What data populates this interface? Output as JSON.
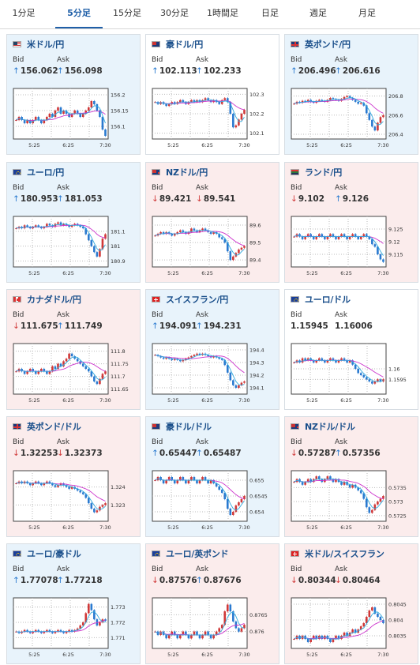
{
  "tabs": [
    {
      "label": "1分足",
      "active": false
    },
    {
      "label": "5分足",
      "active": true
    },
    {
      "label": "15分足",
      "active": false
    },
    {
      "label": "30分足",
      "active": false
    },
    {
      "label": "1時間足",
      "active": false
    },
    {
      "label": "日足",
      "active": false
    },
    {
      "label": "週足",
      "active": false
    },
    {
      "label": "月足",
      "active": false
    }
  ],
  "labels": {
    "bid": "Bid",
    "ask": "Ask"
  },
  "colors": {
    "up": "#2a7ad0",
    "down": "#d03838",
    "card_up": "#e8f3fb",
    "card_down": "#fbecec",
    "ma": "#cc33cc",
    "ma2": "#33aadd"
  },
  "cards": [
    {
      "pair": "米ドル/円",
      "flag": "us-flag",
      "trend": "up",
      "bid": "156.062",
      "ask": "156.098",
      "bid_dir": "up",
      "ask_dir": "up",
      "chart_data": {
        "type": "candlestick",
        "x_ticks": [
          "5:25",
          "6:25",
          "7:30"
        ],
        "y_ticks": [
          "156.2",
          "156.15",
          "156.1"
        ],
        "ylim": [
          156.06,
          156.22
        ],
        "close": [
          156.12,
          156.13,
          156.12,
          156.11,
          156.12,
          156.11,
          156.12,
          156.13,
          156.12,
          156.11,
          156.12,
          156.13,
          156.14,
          156.13,
          156.15,
          156.16,
          156.14,
          156.15,
          156.14,
          156.13,
          156.14,
          156.15,
          156.14,
          156.13,
          156.14,
          156.15,
          156.16,
          156.18,
          156.17,
          156.15,
          156.13,
          156.09,
          156.07
        ]
      }
    },
    {
      "pair": "豪ドル/円",
      "flag": "au-flag",
      "trend": "neutral",
      "bid": "102.113",
      "ask": "102.233",
      "bid_dir": "up",
      "ask_dir": "up",
      "chart_data": {
        "type": "candlestick",
        "x_ticks": [
          "5:25",
          "6:25",
          "7:30"
        ],
        "y_ticks": [
          "102.3",
          "102.2",
          "102.1"
        ],
        "ylim": [
          102.07,
          102.33
        ],
        "close": [
          102.26,
          102.25,
          102.26,
          102.25,
          102.24,
          102.25,
          102.26,
          102.25,
          102.26,
          102.27,
          102.26,
          102.25,
          102.26,
          102.27,
          102.26,
          102.27,
          102.26,
          102.27,
          102.28,
          102.27,
          102.26,
          102.27,
          102.26,
          102.25,
          102.27,
          102.28,
          102.26,
          102.2,
          102.13,
          102.14,
          102.17,
          102.2,
          102.22
        ]
      }
    },
    {
      "pair": "英ポンド/円",
      "flag": "uk-flag",
      "trend": "up",
      "bid": "206.496",
      "ask": "206.616",
      "bid_dir": "up",
      "ask_dir": "up",
      "chart_data": {
        "type": "candlestick",
        "x_ticks": [
          "5:25",
          "6:25",
          "7:30"
        ],
        "y_ticks": [
          "206.8",
          "206.6",
          "206.4"
        ],
        "ylim": [
          206.35,
          206.88
        ],
        "close": [
          206.72,
          206.74,
          206.73,
          206.75,
          206.74,
          206.76,
          206.74,
          206.73,
          206.75,
          206.76,
          206.75,
          206.74,
          206.76,
          206.78,
          206.77,
          206.76,
          206.75,
          206.77,
          206.79,
          206.8,
          206.78,
          206.76,
          206.74,
          206.72,
          206.73,
          206.7,
          206.62,
          206.55,
          206.48,
          206.44,
          206.52,
          206.58,
          206.6
        ]
      }
    },
    {
      "pair": "ユーロ/円",
      "flag": "eu-flag",
      "trend": "up",
      "bid": "180.953",
      "ask": "181.053",
      "bid_dir": "up",
      "ask_dir": "up",
      "chart_data": {
        "type": "candlestick",
        "x_ticks": [
          "5:25",
          "6:25",
          "7:30"
        ],
        "y_ticks": [
          "181.1",
          "181",
          "180.9"
        ],
        "ylim": [
          180.86,
          181.2
        ],
        "close": [
          181.12,
          181.13,
          181.12,
          181.14,
          181.13,
          181.12,
          181.13,
          181.14,
          181.13,
          181.12,
          181.13,
          181.15,
          181.14,
          181.13,
          181.15,
          181.16,
          181.14,
          181.15,
          181.14,
          181.13,
          181.14,
          181.15,
          181.14,
          181.13,
          181.12,
          181.08,
          181.04,
          181.0,
          180.96,
          180.93,
          180.98,
          181.05,
          181.08
        ]
      }
    },
    {
      "pair": "NZドル/円",
      "flag": "nz-flag",
      "trend": "down",
      "bid": "89.421",
      "ask": "89.541",
      "bid_dir": "down",
      "ask_dir": "down",
      "chart_data": {
        "type": "candlestick",
        "x_ticks": [
          "5:25",
          "6:25",
          "7:30"
        ],
        "y_ticks": [
          "89.6",
          "89.5",
          "89.4"
        ],
        "ylim": [
          89.36,
          89.65
        ],
        "close": [
          89.54,
          89.55,
          89.56,
          89.55,
          89.56,
          89.55,
          89.54,
          89.55,
          89.56,
          89.57,
          89.56,
          89.55,
          89.56,
          89.58,
          89.57,
          89.56,
          89.57,
          89.58,
          89.57,
          89.56,
          89.55,
          89.56,
          89.55,
          89.53,
          89.52,
          89.5,
          89.45,
          89.4,
          89.42,
          89.44,
          89.46,
          89.47,
          89.48
        ]
      }
    },
    {
      "pair": "ランド/円",
      "flag": "za-flag",
      "trend": "down",
      "bid": "9.102",
      "ask": "9.126",
      "bid_dir": "down",
      "ask_dir": "up",
      "chart_data": {
        "type": "candlestick",
        "x_ticks": [
          "5:25",
          "6:25",
          "7:30"
        ],
        "y_ticks": [
          "9.125",
          "9.12",
          "9.115"
        ],
        "ylim": [
          9.11,
          9.13
        ],
        "close": [
          9.122,
          9.123,
          9.122,
          9.121,
          9.122,
          9.123,
          9.122,
          9.121,
          9.122,
          9.123,
          9.122,
          9.121,
          9.122,
          9.123,
          9.122,
          9.121,
          9.122,
          9.123,
          9.122,
          9.121,
          9.122,
          9.123,
          9.122,
          9.121,
          9.122,
          9.123,
          9.122,
          9.121,
          9.119,
          9.118,
          9.115,
          9.113,
          9.112
        ]
      }
    },
    {
      "pair": "カナダドル/円",
      "flag": "ca-flag",
      "trend": "down",
      "bid": "111.675",
      "ask": "111.749",
      "bid_dir": "down",
      "ask_dir": "up",
      "chart_data": {
        "type": "candlestick",
        "x_ticks": [
          "5:25",
          "6:25",
          "7:30"
        ],
        "y_ticks": [
          "111.8",
          "111.75",
          "111.7",
          "111.65"
        ],
        "ylim": [
          111.63,
          111.83
        ],
        "close": [
          111.72,
          111.73,
          111.72,
          111.71,
          111.72,
          111.73,
          111.72,
          111.71,
          111.72,
          111.73,
          111.72,
          111.71,
          111.72,
          111.74,
          111.73,
          111.75,
          111.74,
          111.76,
          111.77,
          111.79,
          111.78,
          111.77,
          111.76,
          111.75,
          111.74,
          111.73,
          111.72,
          111.7,
          111.68,
          111.67,
          111.69,
          111.71,
          111.72
        ]
      }
    },
    {
      "pair": "スイスフラン/円",
      "flag": "ch-flag",
      "trend": "up",
      "bid": "194.091",
      "ask": "194.231",
      "bid_dir": "up",
      "ask_dir": "up",
      "chart_data": {
        "type": "candlestick",
        "x_ticks": [
          "5:25",
          "6:25",
          "7:30"
        ],
        "y_ticks": [
          "194.4",
          "194.3",
          "194.2",
          "194.1"
        ],
        "ylim": [
          194.05,
          194.45
        ],
        "close": [
          194.36,
          194.35,
          194.34,
          194.33,
          194.34,
          194.33,
          194.32,
          194.33,
          194.32,
          194.31,
          194.32,
          194.33,
          194.34,
          194.35,
          194.36,
          194.37,
          194.36,
          194.37,
          194.36,
          194.35,
          194.34,
          194.35,
          194.34,
          194.33,
          194.32,
          194.28,
          194.22,
          194.16,
          194.12,
          194.1,
          194.12,
          194.14,
          194.15
        ]
      }
    },
    {
      "pair": "ユーロ/ドル",
      "flag": "eu-flag",
      "trend": "neutral",
      "bid": "1.15945",
      "ask": "1.16006",
      "bid_dir": "none",
      "ask_dir": "none",
      "chart_data": {
        "type": "candlestick",
        "x_ticks": [
          "5:25",
          "6:25",
          "7:30"
        ],
        "y_ticks": [
          "1.16",
          "1.1595"
        ],
        "ylim": [
          1.1588,
          1.1612
        ],
        "close": [
          1.1603,
          1.1604,
          1.1603,
          1.1605,
          1.1604,
          1.1605,
          1.1604,
          1.1603,
          1.1604,
          1.1605,
          1.1604,
          1.1603,
          1.1604,
          1.1605,
          1.1604,
          1.1603,
          1.1604,
          1.1605,
          1.1604,
          1.1603,
          1.1604,
          1.1602,
          1.16,
          1.1598,
          1.1597,
          1.1596,
          1.1595,
          1.1594,
          1.1593,
          1.1594,
          1.1595,
          1.1594,
          1.1595
        ]
      }
    },
    {
      "pair": "英ポンド/ドル",
      "flag": "uk-flag",
      "trend": "down",
      "bid": "1.32253",
      "ask": "1.32373",
      "bid_dir": "down",
      "ask_dir": "down",
      "chart_data": {
        "type": "candlestick",
        "x_ticks": [
          "5:25",
          "6:25",
          "7:30"
        ],
        "y_ticks": [
          "1.324",
          "1.323"
        ],
        "ylim": [
          1.3221,
          1.3249
        ],
        "close": [
          1.3242,
          1.3243,
          1.3242,
          1.3243,
          1.3242,
          1.3241,
          1.3242,
          1.3243,
          1.3242,
          1.3241,
          1.3242,
          1.3243,
          1.3242,
          1.3241,
          1.324,
          1.3241,
          1.3242,
          1.3241,
          1.324,
          1.3239,
          1.324,
          1.3239,
          1.3238,
          1.3237,
          1.3236,
          1.3234,
          1.3231,
          1.3228,
          1.3226,
          1.3227,
          1.3229,
          1.323,
          1.3231
        ]
      }
    },
    {
      "pair": "豪ドル/ドル",
      "flag": "au-flag",
      "trend": "up",
      "bid": "0.65447",
      "ask": "0.65487",
      "bid_dir": "up",
      "ask_dir": "up",
      "chart_data": {
        "type": "candlestick",
        "x_ticks": [
          "5:25",
          "6:25",
          "7:30"
        ],
        "y_ticks": [
          "0.655",
          "0.6545",
          "0.654"
        ],
        "ylim": [
          0.6537,
          0.6553
        ],
        "close": [
          0.655,
          0.6551,
          0.655,
          0.6549,
          0.655,
          0.6551,
          0.655,
          0.6549,
          0.655,
          0.6551,
          0.655,
          0.6549,
          0.655,
          0.6551,
          0.655,
          0.6549,
          0.655,
          0.6551,
          0.655,
          0.6549,
          0.655,
          0.6549,
          0.6548,
          0.6547,
          0.6546,
          0.6544,
          0.6541,
          0.6539,
          0.654,
          0.6542,
          0.6543,
          0.6544,
          0.6545
        ]
      }
    },
    {
      "pair": "NZドル/ドル",
      "flag": "nz-flag",
      "trend": "down",
      "bid": "0.57287",
      "ask": "0.57356",
      "bid_dir": "down",
      "ask_dir": "up",
      "chart_data": {
        "type": "candlestick",
        "x_ticks": [
          "5:25",
          "6:25",
          "7:30"
        ],
        "y_ticks": [
          "0.5735",
          "0.573",
          "0.5725"
        ],
        "ylim": [
          0.5723,
          0.5741
        ],
        "close": [
          0.5737,
          0.5738,
          0.5737,
          0.5736,
          0.5737,
          0.5738,
          0.5737,
          0.5738,
          0.5739,
          0.5738,
          0.5737,
          0.5738,
          0.5739,
          0.5738,
          0.5737,
          0.5738,
          0.5737,
          0.5736,
          0.5737,
          0.5736,
          0.5735,
          0.5736,
          0.5735,
          0.5734,
          0.5733,
          0.5731,
          0.5728,
          0.5726,
          0.5727,
          0.5729,
          0.573,
          0.5731,
          0.5732
        ]
      }
    },
    {
      "pair": "ユーロ/豪ドル",
      "flag": "eu-flag",
      "trend": "up",
      "bid": "1.77078",
      "ask": "1.77218",
      "bid_dir": "up",
      "ask_dir": "up",
      "chart_data": {
        "type": "candlestick",
        "x_ticks": [
          "5:25",
          "6:25",
          "7:30"
        ],
        "y_ticks": [
          "1.773",
          "1.772",
          "1.771"
        ],
        "ylim": [
          1.7703,
          1.7736
        ],
        "close": [
          1.7714,
          1.7713,
          1.7714,
          1.7715,
          1.7714,
          1.7713,
          1.7714,
          1.7715,
          1.7714,
          1.7713,
          1.7714,
          1.7715,
          1.7714,
          1.7713,
          1.7714,
          1.7715,
          1.7714,
          1.7713,
          1.7714,
          1.7715,
          1.7714,
          1.7715,
          1.7716,
          1.7718,
          1.772,
          1.7726,
          1.7732,
          1.7728,
          1.7722,
          1.7718,
          1.772,
          1.7722,
          1.7721
        ]
      }
    },
    {
      "pair": "ユーロ/英ポンド",
      "flag": "eu-flag",
      "trend": "down",
      "bid": "0.87576",
      "ask": "0.87676",
      "bid_dir": "down",
      "ask_dir": "up",
      "chart_data": {
        "type": "candlestick",
        "x_ticks": [
          "5:25",
          "6:25",
          "7:30"
        ],
        "y_ticks": [
          "0.8765",
          "0.876"
        ],
        "ylim": [
          0.8755,
          0.877
        ],
        "close": [
          0.876,
          0.8759,
          0.876,
          0.8759,
          0.8758,
          0.8759,
          0.876,
          0.8759,
          0.8758,
          0.8759,
          0.876,
          0.8759,
          0.8758,
          0.8759,
          0.876,
          0.8759,
          0.8758,
          0.8759,
          0.876,
          0.8759,
          0.8758,
          0.8759,
          0.876,
          0.8761,
          0.8762,
          0.8766,
          0.8768,
          0.8766,
          0.8763,
          0.8761,
          0.876,
          0.8761,
          0.8762
        ]
      }
    },
    {
      "pair": "米ドル/スイスフラン",
      "flag": "ch-flag",
      "trend": "down",
      "bid": "0.80344",
      "ask": "0.80464",
      "bid_dir": "down",
      "ask_dir": "down",
      "chart_data": {
        "type": "candlestick",
        "x_ticks": [
          "5:25",
          "6:25",
          "7:30"
        ],
        "y_ticks": [
          "0.8045",
          "0.804",
          "0.8035"
        ],
        "ylim": [
          0.8031,
          0.8047
        ],
        "close": [
          0.8034,
          0.8035,
          0.8034,
          0.8035,
          0.8034,
          0.8033,
          0.8034,
          0.8035,
          0.8034,
          0.8035,
          0.8034,
          0.8035,
          0.8034,
          0.8033,
          0.8034,
          0.8035,
          0.8034,
          0.8035,
          0.8036,
          0.8035,
          0.8036,
          0.8037,
          0.8036,
          0.8037,
          0.8038,
          0.8039,
          0.8041,
          0.8043,
          0.8044,
          0.8042,
          0.8041,
          0.804,
          0.8039
        ]
      }
    }
  ]
}
